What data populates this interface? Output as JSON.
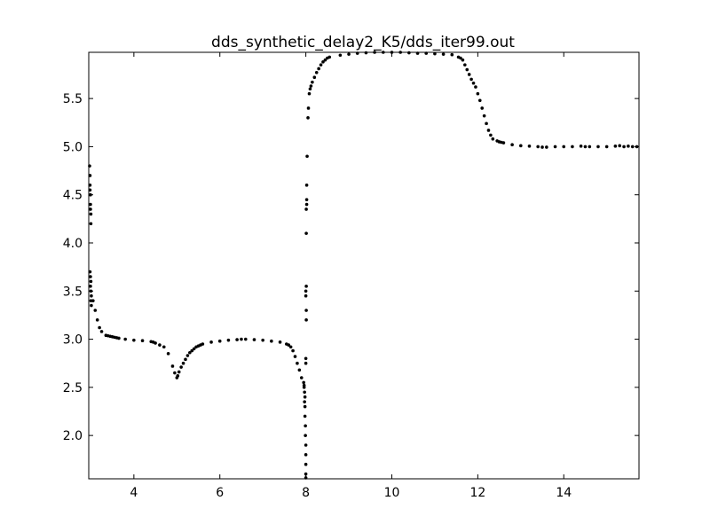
{
  "chart_data": {
    "type": "scatter",
    "title": "dds_synthetic_delay2_K5/dds_iter99.out",
    "xlabel": "",
    "ylabel": "",
    "xlim": [
      2.95,
      15.75
    ],
    "ylim": [
      1.55,
      5.98
    ],
    "xticks": [
      4,
      6,
      8,
      10,
      12,
      14
    ],
    "xtick_labels": [
      "4",
      "6",
      "8",
      "10",
      "12",
      "14"
    ],
    "yticks": [
      2.0,
      2.5,
      3.0,
      3.5,
      4.0,
      4.5,
      5.0,
      5.5
    ],
    "ytick_labels": [
      "2.0",
      "2.5",
      "3.0",
      "3.5",
      "4.0",
      "4.5",
      "5.0",
      "5.5"
    ],
    "grid": false,
    "legend": "none",
    "marker_color": "#000000",
    "series": [
      {
        "points": [
          [
            2.97,
            4.8
          ],
          [
            2.98,
            4.7
          ],
          [
            2.98,
            4.6
          ],
          [
            2.99,
            4.5
          ],
          [
            2.99,
            4.4
          ],
          [
            3.0,
            4.3
          ],
          [
            3.0,
            4.2
          ],
          [
            2.98,
            4.55
          ],
          [
            2.99,
            4.35
          ],
          [
            2.98,
            3.7
          ],
          [
            2.99,
            3.65
          ],
          [
            3.0,
            3.6
          ],
          [
            3.0,
            3.5
          ],
          [
            3.01,
            3.45
          ],
          [
            3.0,
            3.4
          ],
          [
            3.01,
            3.35
          ],
          [
            2.99,
            3.55
          ],
          [
            3.05,
            3.4
          ],
          [
            3.1,
            3.3
          ],
          [
            3.15,
            3.2
          ],
          [
            3.2,
            3.12
          ],
          [
            3.25,
            3.08
          ],
          [
            3.35,
            3.04
          ],
          [
            3.4,
            3.035
          ],
          [
            3.45,
            3.03
          ],
          [
            3.5,
            3.025
          ],
          [
            3.55,
            3.02
          ],
          [
            3.6,
            3.015
          ],
          [
            3.65,
            3.01
          ],
          [
            3.8,
            3.0
          ],
          [
            4.0,
            2.99
          ],
          [
            4.2,
            2.985
          ],
          [
            4.4,
            2.975
          ],
          [
            4.45,
            2.97
          ],
          [
            4.5,
            2.96
          ],
          [
            4.6,
            2.94
          ],
          [
            4.7,
            2.92
          ],
          [
            4.8,
            2.85
          ],
          [
            4.9,
            2.72
          ],
          [
            4.95,
            2.65
          ],
          [
            5.0,
            2.6
          ],
          [
            5.02,
            2.62
          ],
          [
            5.05,
            2.66
          ],
          [
            5.1,
            2.71
          ],
          [
            5.15,
            2.75
          ],
          [
            5.2,
            2.79
          ],
          [
            5.25,
            2.83
          ],
          [
            5.3,
            2.86
          ],
          [
            5.35,
            2.88
          ],
          [
            5.4,
            2.9
          ],
          [
            5.45,
            2.92
          ],
          [
            5.5,
            2.93
          ],
          [
            5.55,
            2.94
          ],
          [
            5.6,
            2.95
          ],
          [
            5.8,
            2.97
          ],
          [
            6.0,
            2.98
          ],
          [
            6.2,
            2.99
          ],
          [
            6.4,
            2.995
          ],
          [
            6.5,
            3.0
          ],
          [
            6.6,
            3.0
          ],
          [
            6.8,
            2.995
          ],
          [
            7.0,
            2.99
          ],
          [
            7.2,
            2.98
          ],
          [
            7.4,
            2.97
          ],
          [
            7.55,
            2.95
          ],
          [
            7.6,
            2.94
          ],
          [
            7.65,
            2.92
          ],
          [
            7.7,
            2.88
          ],
          [
            7.75,
            2.82
          ],
          [
            7.8,
            2.75
          ],
          [
            7.85,
            2.68
          ],
          [
            7.9,
            2.6
          ],
          [
            7.95,
            2.55
          ],
          [
            7.96,
            2.5
          ],
          [
            7.97,
            2.45
          ],
          [
            7.98,
            2.4
          ],
          [
            7.97,
            2.35
          ],
          [
            7.96,
            2.52
          ],
          [
            7.98,
            2.3
          ],
          [
            7.98,
            2.2
          ],
          [
            7.99,
            2.1
          ],
          [
            7.99,
            2.0
          ],
          [
            8.0,
            1.9
          ],
          [
            8.0,
            1.8
          ],
          [
            8.0,
            1.7
          ],
          [
            8.0,
            1.6
          ],
          [
            8.0,
            1.56
          ],
          [
            8.0,
            2.8
          ],
          [
            8.0,
            2.75
          ],
          [
            8.01,
            3.2
          ],
          [
            8.01,
            3.3
          ],
          [
            8.0,
            3.45
          ],
          [
            8.0,
            3.5
          ],
          [
            8.01,
            3.55
          ],
          [
            8.01,
            4.1
          ],
          [
            8.01,
            4.35
          ],
          [
            8.02,
            4.4
          ],
          [
            8.02,
            4.45
          ],
          [
            8.02,
            4.6
          ],
          [
            8.03,
            4.9
          ],
          [
            8.05,
            5.3
          ],
          [
            8.06,
            5.4
          ],
          [
            8.08,
            5.55
          ],
          [
            8.1,
            5.6
          ],
          [
            8.12,
            5.63
          ],
          [
            8.15,
            5.67
          ],
          [
            8.2,
            5.72
          ],
          [
            8.25,
            5.77
          ],
          [
            8.3,
            5.81
          ],
          [
            8.35,
            5.85
          ],
          [
            8.4,
            5.88
          ],
          [
            8.45,
            5.9
          ],
          [
            8.5,
            5.92
          ],
          [
            8.55,
            5.93
          ],
          [
            8.8,
            5.95
          ],
          [
            9.0,
            5.96
          ],
          [
            9.2,
            5.97
          ],
          [
            9.4,
            5.975
          ],
          [
            9.6,
            5.98
          ],
          [
            9.8,
            5.98
          ],
          [
            10.0,
            5.98
          ],
          [
            10.2,
            5.98
          ],
          [
            10.4,
            5.975
          ],
          [
            10.6,
            5.97
          ],
          [
            10.8,
            5.97
          ],
          [
            11.0,
            5.965
          ],
          [
            11.2,
            5.96
          ],
          [
            11.4,
            5.955
          ],
          [
            11.55,
            5.93
          ],
          [
            11.6,
            5.92
          ],
          [
            11.65,
            5.9
          ],
          [
            11.7,
            5.85
          ],
          [
            11.75,
            5.8
          ],
          [
            11.8,
            5.75
          ],
          [
            11.85,
            5.7
          ],
          [
            11.9,
            5.66
          ],
          [
            11.95,
            5.62
          ],
          [
            12.0,
            5.55
          ],
          [
            12.05,
            5.48
          ],
          [
            12.1,
            5.4
          ],
          [
            12.15,
            5.32
          ],
          [
            12.2,
            5.24
          ],
          [
            12.25,
            5.17
          ],
          [
            12.3,
            5.12
          ],
          [
            12.35,
            5.08
          ],
          [
            12.45,
            5.06
          ],
          [
            12.5,
            5.05
          ],
          [
            12.55,
            5.045
          ],
          [
            12.6,
            5.04
          ],
          [
            12.8,
            5.02
          ],
          [
            13.0,
            5.01
          ],
          [
            13.2,
            5.005
          ],
          [
            13.4,
            5.0
          ],
          [
            13.5,
            4.995
          ],
          [
            13.6,
            4.995
          ],
          [
            13.8,
            5.0
          ],
          [
            14.0,
            5.0
          ],
          [
            14.2,
            5.0
          ],
          [
            14.4,
            5.005
          ],
          [
            14.5,
            5.0
          ],
          [
            14.6,
            5.0
          ],
          [
            14.8,
            5.0
          ],
          [
            15.0,
            5.0
          ],
          [
            15.2,
            5.005
          ],
          [
            15.3,
            5.01
          ],
          [
            15.4,
            5.0
          ],
          [
            15.5,
            5.005
          ],
          [
            15.6,
            5.0
          ],
          [
            15.7,
            5.0
          ]
        ]
      }
    ]
  }
}
